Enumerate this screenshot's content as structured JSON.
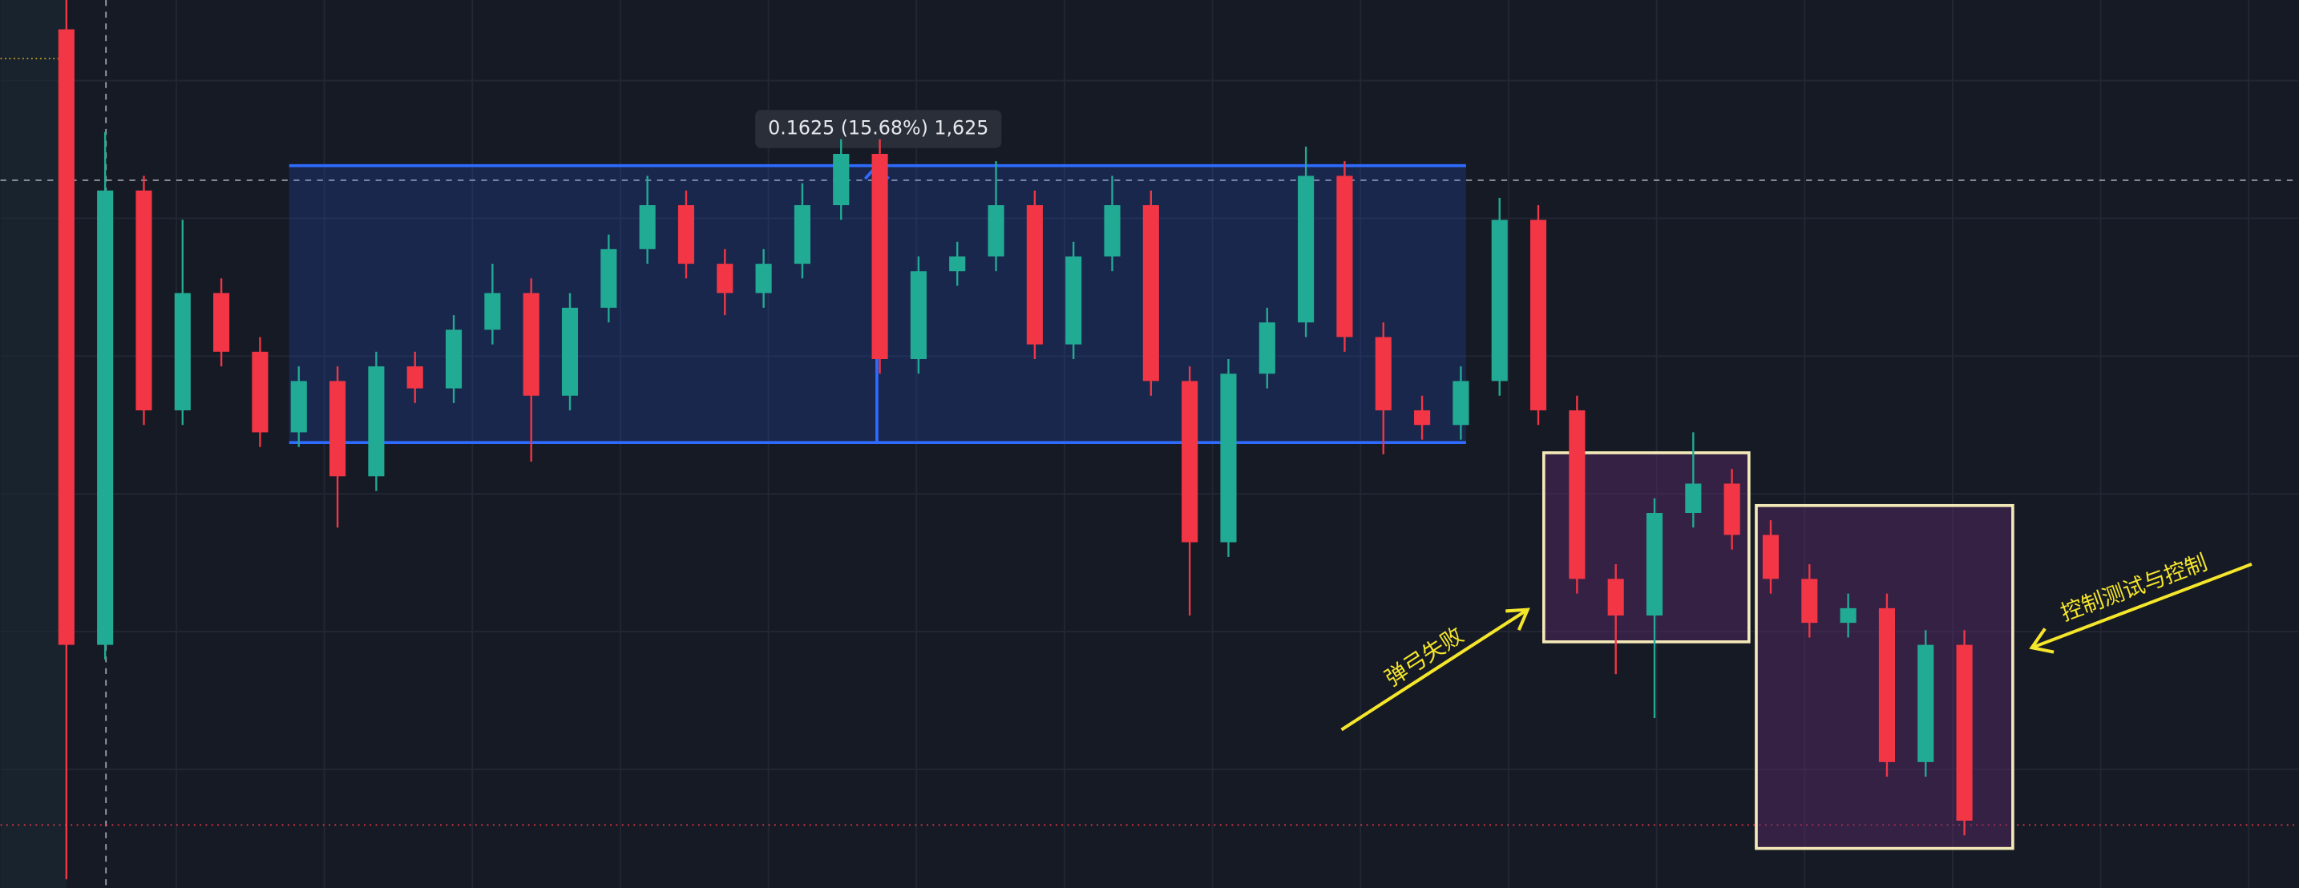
{
  "chart_data": {
    "type": "candlestick",
    "ylim": [
      0.7746,
      1.2957
    ],
    "grid": true,
    "up_color": "#22ab94",
    "down_color": "#f23645",
    "open": [
      1.2785,
      0.9173,
      1.1839,
      1.0549,
      1.1237,
      1.0893,
      1.042,
      1.0721,
      1.0162,
      1.0807,
      1.0678,
      1.1022,
      1.1237,
      1.0635,
      1.1151,
      1.1495,
      1.1753,
      1.1409,
      1.1237,
      1.1409,
      1.1753,
      1.2054,
      1.085,
      1.1366,
      1.1452,
      1.1753,
      1.0936,
      1.1452,
      1.1753,
      1.0721,
      0.9775,
      1.0764,
      1.1065,
      1.1925,
      1.0979,
      1.0549,
      1.0463,
      1.0721,
      1.1667,
      1.0549,
      0.956,
      0.9345,
      0.9947,
      1.0119,
      0.9818,
      0.956,
      0.9302,
      0.9388,
      0.8485,
      0.9173
    ],
    "high": [
      1.2957,
      1.2183,
      1.1925,
      1.1667,
      1.1323,
      1.0979,
      1.0807,
      1.0807,
      1.0893,
      1.0893,
      1.1108,
      1.1409,
      1.1323,
      1.1237,
      1.1581,
      1.1925,
      1.1839,
      1.1495,
      1.1495,
      1.1882,
      1.214,
      1.214,
      1.1452,
      1.1538,
      1.2011,
      1.1839,
      1.1538,
      1.1925,
      1.1839,
      1.0807,
      1.085,
      1.1151,
      1.2097,
      1.2011,
      1.1065,
      1.0635,
      1.0807,
      1.1796,
      1.1753,
      1.0635,
      0.9646,
      1.0033,
      1.042,
      1.0205,
      0.9904,
      0.9646,
      0.9474,
      0.9474,
      0.9259,
      0.9259
    ],
    "low": [
      0.7797,
      0.9087,
      1.0463,
      1.0463,
      1.0807,
      1.0334,
      1.0334,
      0.9861,
      1.0076,
      1.0592,
      1.0592,
      1.0936,
      1.0248,
      1.0549,
      1.1065,
      1.1409,
      1.1323,
      1.1108,
      1.1151,
      1.1323,
      1.1667,
      1.0764,
      1.0764,
      1.128,
      1.1366,
      1.085,
      1.085,
      1.1366,
      1.0635,
      0.9345,
      0.9689,
      1.0678,
      1.0979,
      1.0893,
      1.0291,
      1.0377,
      1.0377,
      1.0635,
      1.0463,
      0.9474,
      0.9001,
      0.8743,
      0.9861,
      0.9732,
      0.9474,
      0.9216,
      0.9216,
      0.8399,
      0.8399,
      0.8055
    ],
    "close": [
      0.9173,
      1.1839,
      1.0549,
      1.1237,
      1.0893,
      1.042,
      1.0721,
      1.0162,
      1.0807,
      1.0678,
      1.1022,
      1.1237,
      1.0635,
      1.1151,
      1.1495,
      1.1753,
      1.1409,
      1.1237,
      1.1409,
      1.1753,
      1.2054,
      1.085,
      1.1366,
      1.1452,
      1.1753,
      1.0936,
      1.1452,
      1.1753,
      1.0721,
      0.9775,
      1.0764,
      1.1065,
      1.1925,
      1.0979,
      1.0549,
      1.0463,
      1.0721,
      1.1667,
      1.0549,
      0.956,
      0.9345,
      0.9947,
      1.0119,
      0.9818,
      0.956,
      0.9302,
      0.9388,
      0.8485,
      0.9173,
      0.8141
    ],
    "measure": {
      "low": 1.036,
      "high": 1.1985,
      "label": "0.1625 (15.68%) 1,625"
    },
    "annotations": [
      "弹弓失败",
      "控制测试与控制"
    ]
  }
}
